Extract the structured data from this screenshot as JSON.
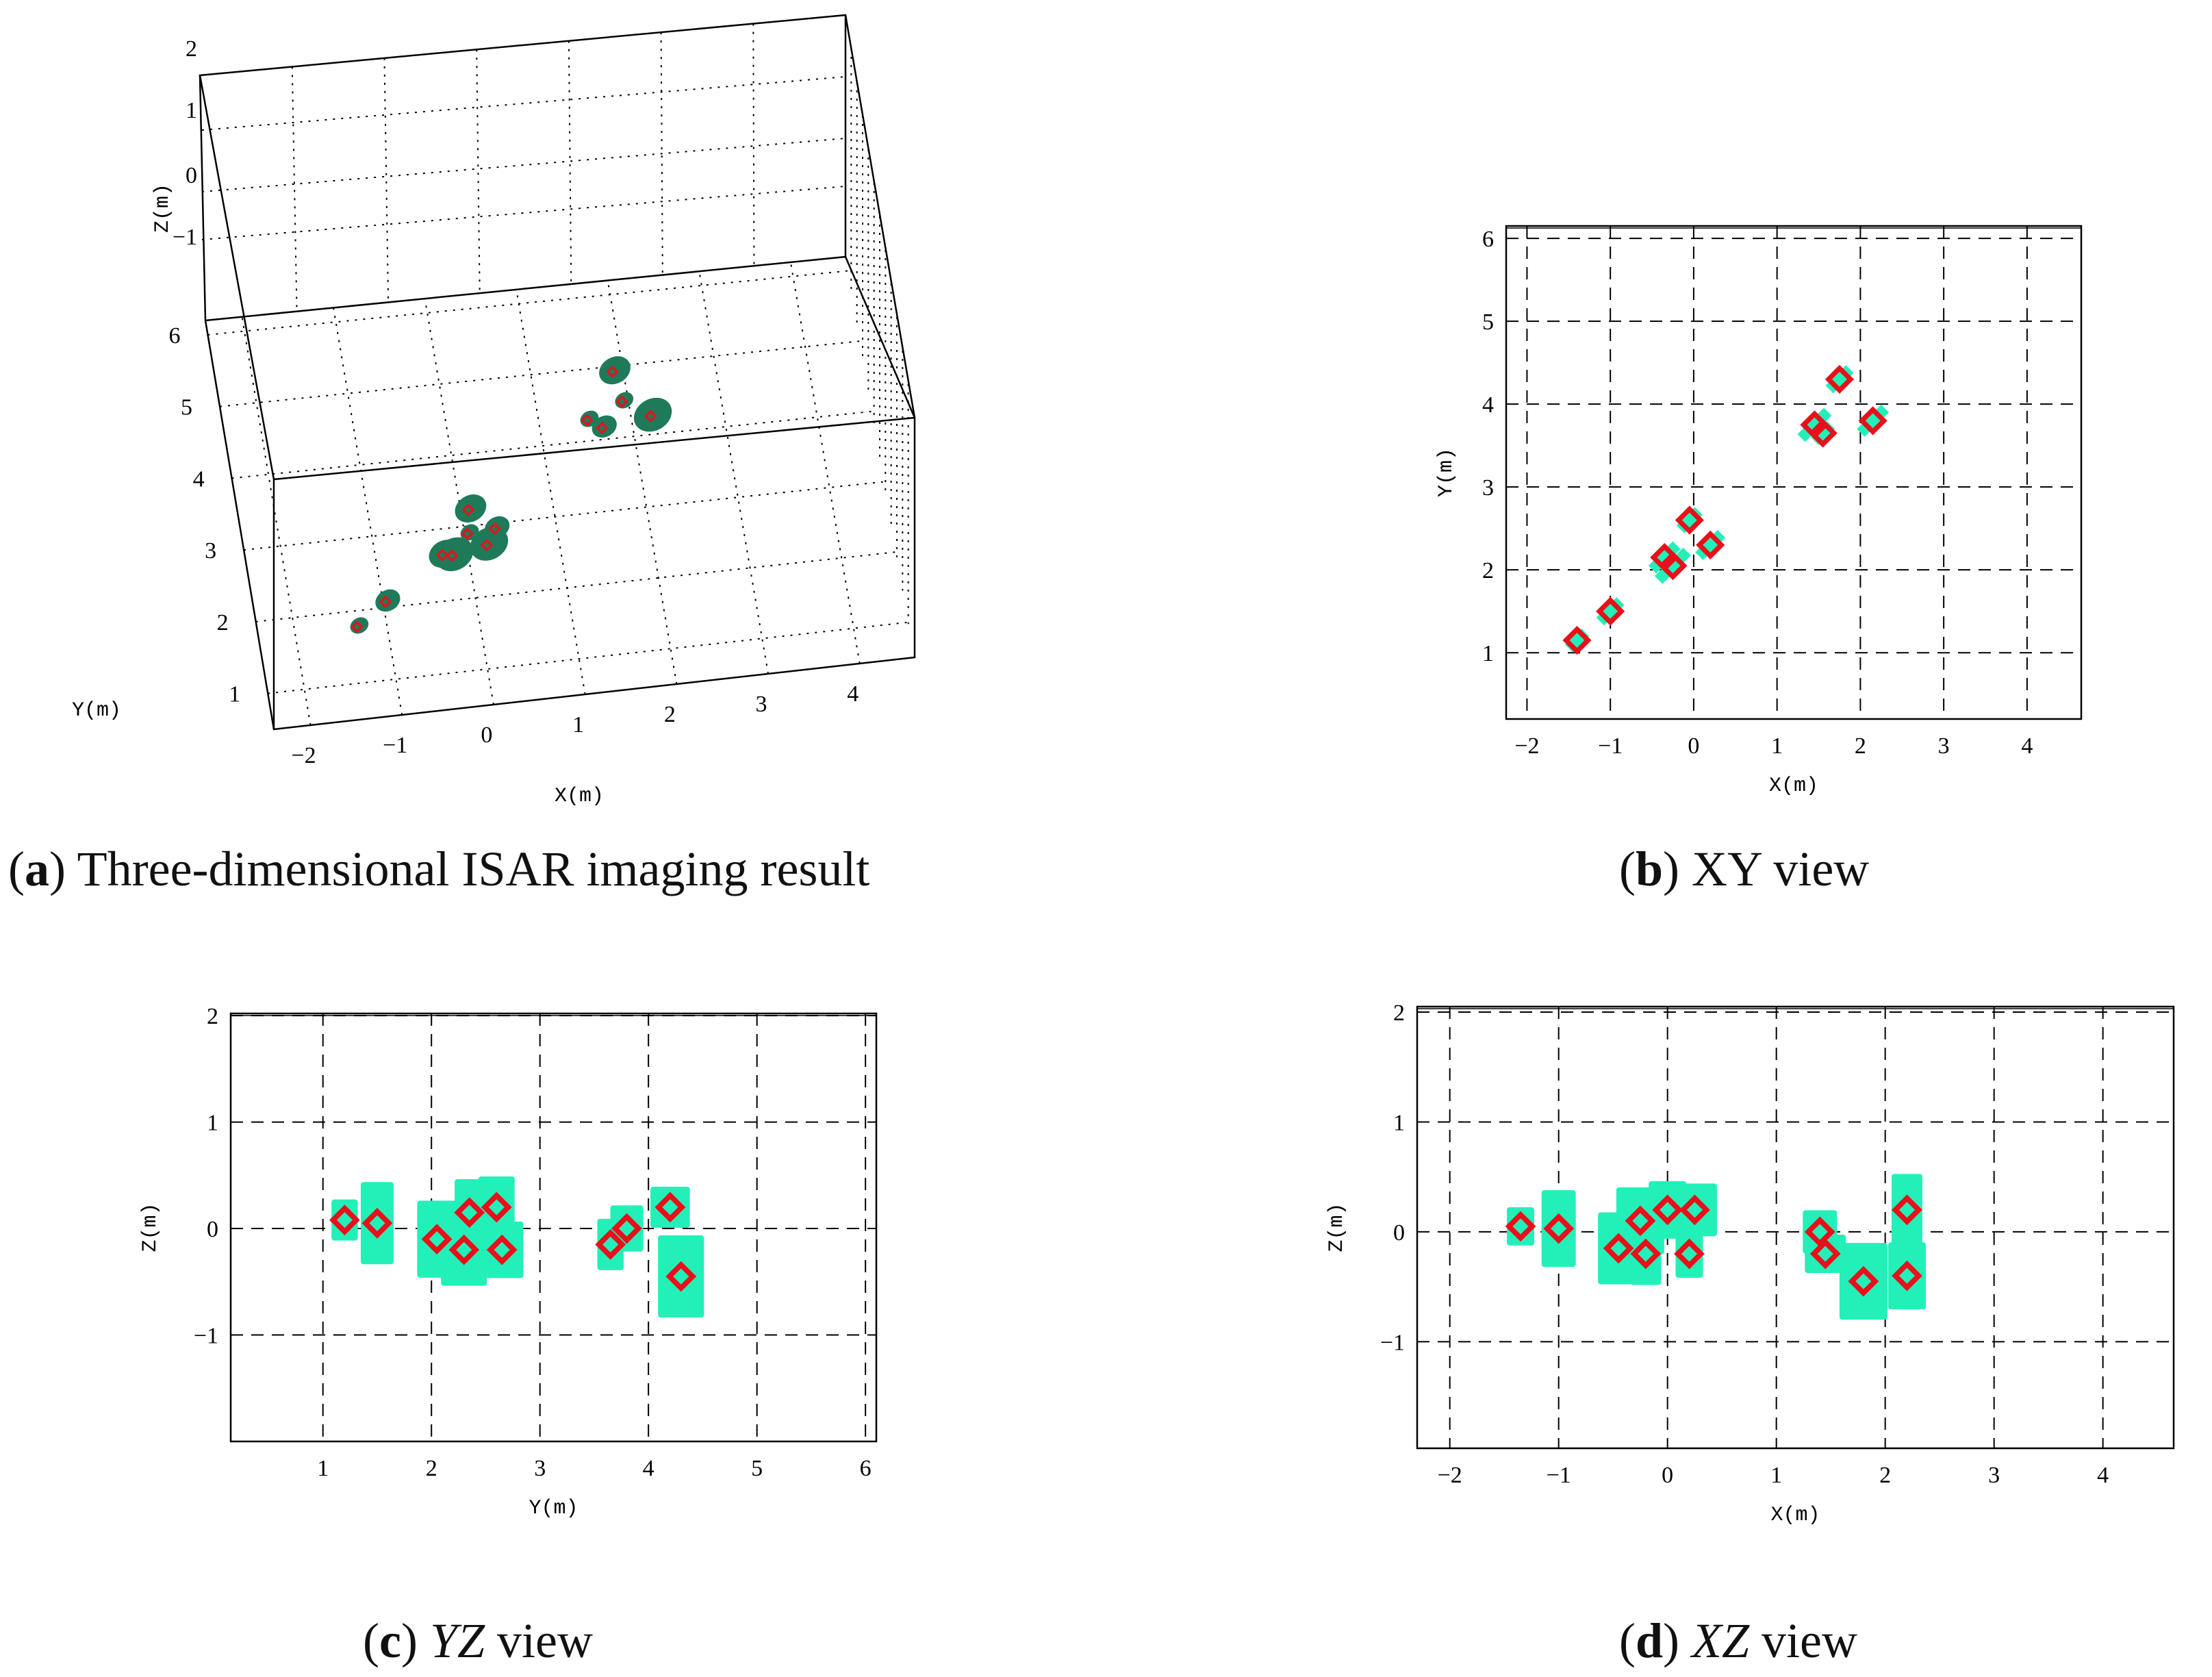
{
  "captions": [
    {
      "letter": "a",
      "text": " Three-dimensional ISAR imaging result"
    },
    {
      "letter": "b",
      "text": " XY view"
    },
    {
      "letter": "c",
      "text": "YZ",
      "suffix": " view"
    },
    {
      "letter": "d",
      "text": "XZ",
      "suffix": " view"
    }
  ],
  "colors": {
    "scatter_marker": "#e8101a",
    "image_fill": "#23f0b8",
    "image_dark": "#1f7a5a"
  },
  "chart_data": [
    {
      "id": "a",
      "type": "scatter",
      "xlabel": "X(m)",
      "ylabel": "Y(m)",
      "zlabel": "Z(m)",
      "xticks": [
        "-2",
        "-1",
        "0",
        "1",
        "2",
        "3",
        "4"
      ],
      "yticks": [
        "1",
        "2",
        "3",
        "4",
        "5",
        "6"
      ],
      "zticks": [
        "2",
        "1",
        "0",
        "-1"
      ],
      "xlim": [
        -2.4,
        4.6
      ],
      "ylim": [
        0.5,
        6.2
      ],
      "zlim": [
        -2,
        2
      ],
      "grid": "dotted",
      "points": [
        {
          "x": -1.4,
          "y": 1.2,
          "z": 0.05
        },
        {
          "x": -1.05,
          "y": 1.5,
          "z": 0.05
        },
        {
          "x": -0.35,
          "y": 2.1,
          "z": -0.1
        },
        {
          "x": -0.25,
          "y": 2.05,
          "z": 0.0
        },
        {
          "x": -0.05,
          "y": 2.3,
          "z": 0.1
        },
        {
          "x": 0.25,
          "y": 2.3,
          "z": 0.2
        },
        {
          "x": 0.0,
          "y": 2.6,
          "z": 0.2
        },
        {
          "x": 0.15,
          "y": 2.2,
          "z": -0.2
        },
        {
          "x": 1.45,
          "y": 3.75,
          "z": -0.1
        },
        {
          "x": 1.6,
          "y": 3.65,
          "z": -0.2
        },
        {
          "x": 1.8,
          "y": 4.3,
          "z": 0.2
        },
        {
          "x": 2.15,
          "y": 3.8,
          "z": -0.4
        },
        {
          "x": 1.85,
          "y": 3.9,
          "z": 0.1
        }
      ]
    },
    {
      "id": "b",
      "type": "scatter",
      "xlabel": "X(m)",
      "ylabel": "Y(m)",
      "xticks": [
        -2,
        -1,
        0,
        1,
        2,
        3,
        4
      ],
      "yticks": [
        1,
        2,
        3,
        4,
        5,
        6
      ],
      "xlim": [
        -2.25,
        4.65
      ],
      "ylim": [
        0.2,
        6.15
      ],
      "grid": "dashed",
      "points": [
        {
          "x": -1.4,
          "y": 1.15
        },
        {
          "x": -1.0,
          "y": 1.5
        },
        {
          "x": -0.35,
          "y": 2.15
        },
        {
          "x": -0.25,
          "y": 2.05
        },
        {
          "x": -0.05,
          "y": 2.6
        },
        {
          "x": 0.2,
          "y": 2.3
        },
        {
          "x": 1.45,
          "y": 3.75
        },
        {
          "x": 1.55,
          "y": 3.65
        },
        {
          "x": 1.75,
          "y": 4.3
        },
        {
          "x": 2.15,
          "y": 3.8
        }
      ]
    },
    {
      "id": "c",
      "type": "scatter",
      "xlabel": "Y(m)",
      "ylabel": "Z(m)",
      "xticks": [
        1,
        2,
        3,
        4,
        5,
        6
      ],
      "yticks": [
        -1,
        0,
        1,
        2
      ],
      "xlim": [
        0.15,
        6.1
      ],
      "ylim": [
        -2.0,
        2.02
      ],
      "grid": "dashed",
      "points": [
        {
          "x": 1.2,
          "y": 0.08
        },
        {
          "x": 1.5,
          "y": 0.05
        },
        {
          "x": 2.05,
          "y": -0.1
        },
        {
          "x": 2.3,
          "y": -0.2
        },
        {
          "x": 2.35,
          "y": 0.15
        },
        {
          "x": 2.6,
          "y": 0.2
        },
        {
          "x": 2.65,
          "y": -0.2
        },
        {
          "x": 3.65,
          "y": -0.15
        },
        {
          "x": 3.8,
          "y": 0.0
        },
        {
          "x": 4.2,
          "y": 0.2
        },
        {
          "x": 4.3,
          "y": -0.45
        }
      ]
    },
    {
      "id": "d",
      "type": "scatter",
      "xlabel": "X(m)",
      "ylabel": "Z(m)",
      "xticks": [
        -2,
        -1,
        0,
        1,
        2,
        3,
        4
      ],
      "yticks": [
        -1,
        0,
        1,
        2
      ],
      "xlim": [
        -2.3,
        4.65
      ],
      "ylim": [
        -1.97,
        2.05
      ],
      "grid": "dashed",
      "points": [
        {
          "x": -1.35,
          "y": 0.05
        },
        {
          "x": -1.0,
          "y": 0.03
        },
        {
          "x": -0.45,
          "y": -0.15
        },
        {
          "x": -0.25,
          "y": 0.1
        },
        {
          "x": -0.2,
          "y": -0.2
        },
        {
          "x": 0.0,
          "y": 0.2
        },
        {
          "x": 0.25,
          "y": 0.2
        },
        {
          "x": 0.2,
          "y": -0.2
        },
        {
          "x": 1.4,
          "y": 0.0
        },
        {
          "x": 1.45,
          "y": -0.2
        },
        {
          "x": 1.8,
          "y": -0.45
        },
        {
          "x": 2.2,
          "y": 0.2
        },
        {
          "x": 2.2,
          "y": -0.4
        }
      ]
    }
  ]
}
